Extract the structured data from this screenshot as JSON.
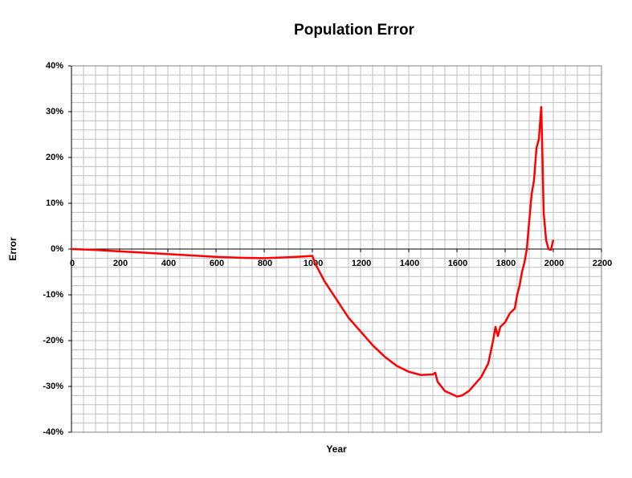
{
  "chart_data": {
    "type": "line",
    "title": "Population Error",
    "x_label": "Year",
    "y_label": "Error",
    "x": [
      0,
      100,
      200,
      300,
      400,
      500,
      600,
      700,
      800,
      900,
      1000,
      1010,
      1050,
      1100,
      1150,
      1200,
      1250,
      1300,
      1350,
      1400,
      1450,
      1500,
      1510,
      1520,
      1550,
      1600,
      1620,
      1650,
      1700,
      1730,
      1750,
      1760,
      1770,
      1780,
      1800,
      1820,
      1840,
      1850,
      1860,
      1870,
      1880,
      1890,
      1900,
      1910,
      1920,
      1930,
      1940,
      1950,
      1955,
      1960,
      1970,
      1980,
      1990,
      2000
    ],
    "series": [
      {
        "name": "Error",
        "color": "#ff0000",
        "values": [
          0,
          -0.2,
          -0.5,
          -0.8,
          -1.1,
          -1.4,
          -1.7,
          -1.9,
          -2.0,
          -1.8,
          -1.5,
          -3,
          -7,
          -11,
          -15,
          -18,
          -21,
          -23.5,
          -25.5,
          -26.8,
          -27.5,
          -27.4,
          -27,
          -29,
          -31,
          -32.2,
          -32,
          -31,
          -28,
          -25,
          -20,
          -17,
          -19,
          -17,
          -16,
          -14,
          -13,
          -10,
          -8,
          -5,
          -3,
          0,
          6,
          12,
          15,
          22,
          24,
          31,
          20,
          8,
          2,
          0,
          -0.2,
          2
        ]
      }
    ],
    "xlim": [
      0,
      2200
    ],
    "xticks": [
      0,
      200,
      400,
      600,
      800,
      1000,
      1200,
      1400,
      1600,
      1800,
      2000,
      2200
    ],
    "ylim": [
      -40,
      40
    ],
    "yticks": [
      {
        "value": -40,
        "label": "-40%"
      },
      {
        "value": -30,
        "label": "-30%"
      },
      {
        "value": -20,
        "label": "-20%"
      },
      {
        "value": -10,
        "label": "-10%"
      },
      {
        "value": 0,
        "label": "0%"
      },
      {
        "value": 10,
        "label": "10%"
      },
      {
        "value": 20,
        "label": "20%"
      },
      {
        "value": 30,
        "label": "30%"
      },
      {
        "value": 40,
        "label": "40%"
      }
    ],
    "grid": true
  }
}
